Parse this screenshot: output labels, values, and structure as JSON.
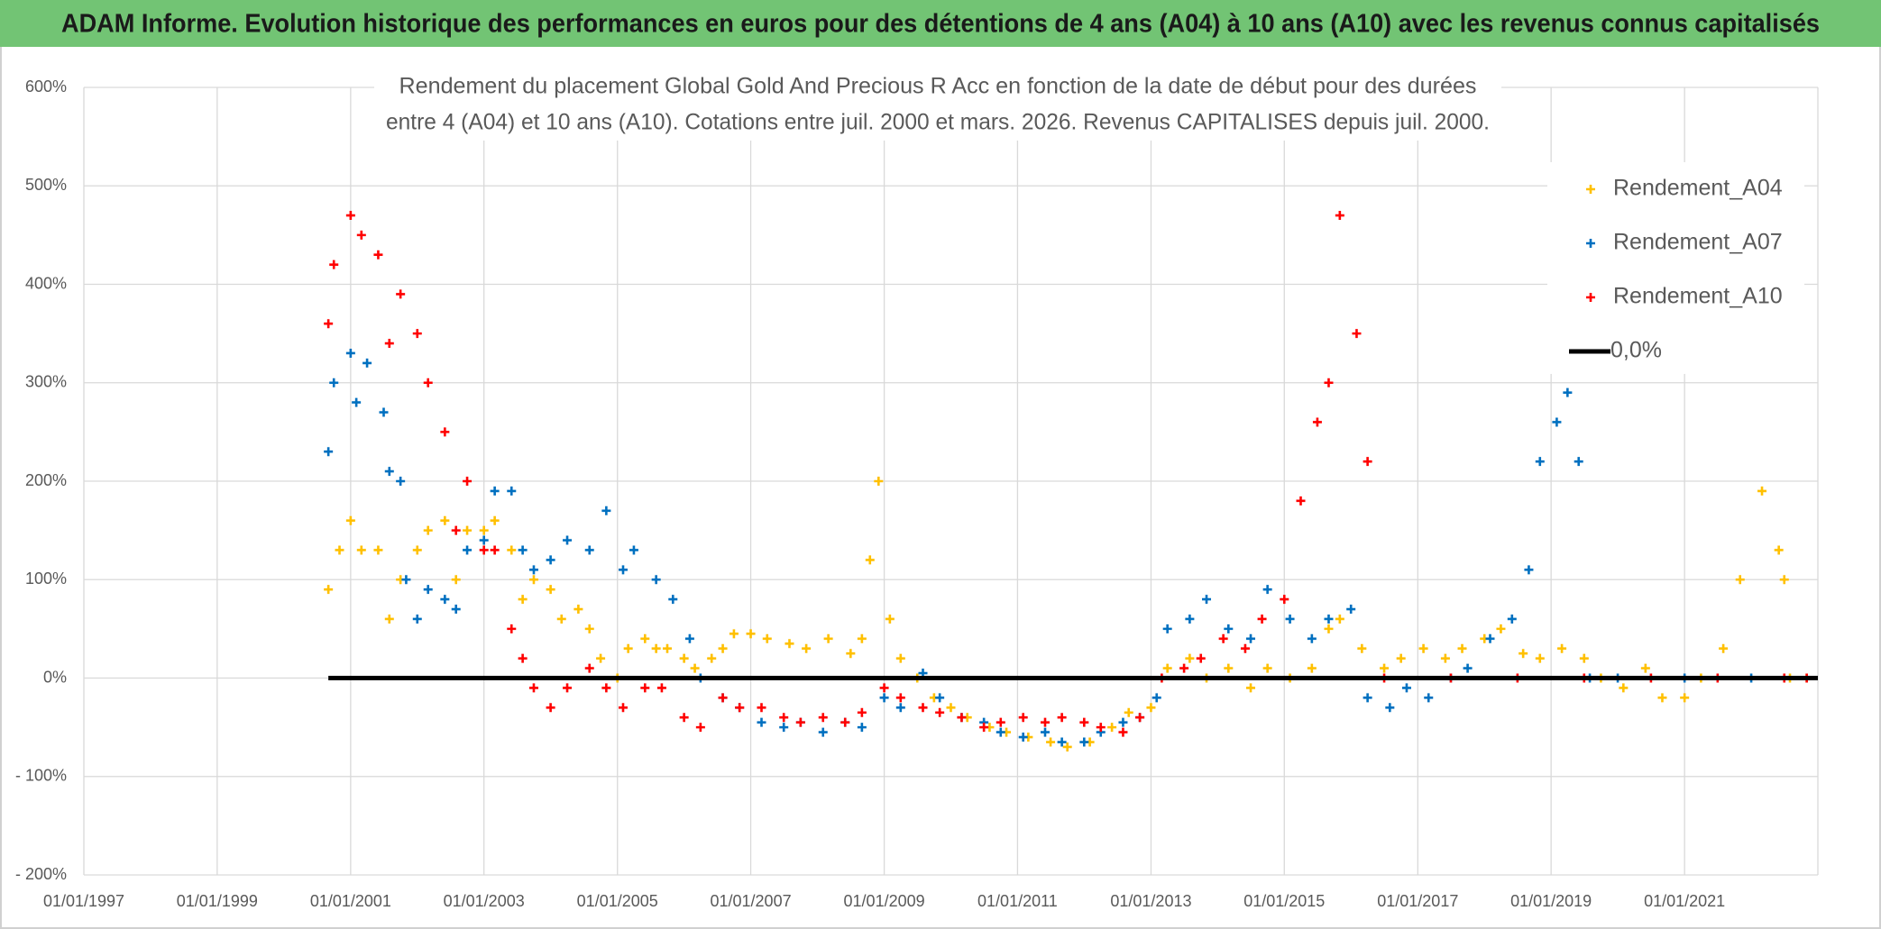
{
  "chart_data": {
    "type": "scatter",
    "banner": "ADAM Informe. Evolution historique des performances en euros pour des détentions de 4 ans (A04) à 10 ans (A10) avec les revenus connus capitalisés",
    "title_lines": [
      "Rendement du placement Global Gold And Precious R Acc en fonction de la date de début pour des durées",
      "entre 4 (A04) et 10 ans (A10). Cotations entre juil. 2000 et mars. 2026. Revenus CAPITALISES depuis juil. 2000."
    ],
    "xlim": [
      "1997-01-01",
      "2023-01-01"
    ],
    "xticks": [
      {
        "value": "1997-01-01",
        "label": "01/01/1997"
      },
      {
        "value": "1999-01-01",
        "label": "01/01/1999"
      },
      {
        "value": "2001-01-01",
        "label": "01/01/2001"
      },
      {
        "value": "2003-01-01",
        "label": "01/01/2003"
      },
      {
        "value": "2005-01-01",
        "label": "01/01/2005"
      },
      {
        "value": "2007-01-01",
        "label": "01/01/2007"
      },
      {
        "value": "2009-01-01",
        "label": "01/01/2009"
      },
      {
        "value": "2011-01-01",
        "label": "01/01/2011"
      },
      {
        "value": "2013-01-01",
        "label": "01/01/2013"
      },
      {
        "value": "2015-01-01",
        "label": "01/01/2015"
      },
      {
        "value": "2017-01-01",
        "label": "01/01/2017"
      },
      {
        "value": "2019-01-01",
        "label": "01/01/2019"
      },
      {
        "value": "2021-01-01",
        "label": "01/01/2021"
      }
    ],
    "ylim": [
      -200,
      600
    ],
    "yticks": [
      {
        "value": 600,
        "label": "600%"
      },
      {
        "value": 500,
        "label": "500%"
      },
      {
        "value": 400,
        "label": "400%"
      },
      {
        "value": 300,
        "label": "300%"
      },
      {
        "value": 200,
        "label": "200%"
      },
      {
        "value": 100,
        "label": "100%"
      },
      {
        "value": 0,
        "label": "0%"
      },
      {
        "value": -100,
        "label": "- 100%"
      },
      {
        "value": -200,
        "label": "- 200%"
      }
    ],
    "grid": true,
    "legend": "upper right",
    "series": [
      {
        "name": "Rendement_A04",
        "color": "#ffc000",
        "style": "marker",
        "x": [
          "2000-09-01",
          "2000-11-01",
          "2001-01-01",
          "2001-03-01",
          "2001-06-01",
          "2001-08-01",
          "2001-10-01",
          "2002-01-01",
          "2002-03-01",
          "2002-06-01",
          "2002-08-01",
          "2002-10-01",
          "2003-01-01",
          "2003-03-01",
          "2003-06-01",
          "2003-08-01",
          "2003-10-01",
          "2004-01-01",
          "2004-03-01",
          "2004-06-01",
          "2004-08-01",
          "2004-10-01",
          "2005-01-01",
          "2005-03-01",
          "2005-06-01",
          "2005-08-01",
          "2005-10-01",
          "2006-01-01",
          "2006-03-01",
          "2006-06-01",
          "2006-08-01",
          "2006-10-01",
          "2007-01-01",
          "2007-04-01",
          "2007-08-01",
          "2007-11-01",
          "2008-03-01",
          "2008-07-01",
          "2008-09-01",
          "2008-10-15",
          "2008-12-01",
          "2009-02-01",
          "2009-04-01",
          "2009-07-01",
          "2009-10-01",
          "2010-01-01",
          "2010-04-01",
          "2010-08-01",
          "2010-11-01",
          "2011-03-01",
          "2011-07-01",
          "2011-10-01",
          "2012-02-01",
          "2012-06-01",
          "2012-09-01",
          "2013-01-01",
          "2013-04-01",
          "2013-08-01",
          "2013-11-01",
          "2014-03-01",
          "2014-07-01",
          "2014-10-01",
          "2015-02-01",
          "2015-06-01",
          "2015-09-01",
          "2015-11-01",
          "2016-03-01",
          "2016-07-01",
          "2016-10-01",
          "2017-02-01",
          "2017-06-01",
          "2017-09-01",
          "2018-01-01",
          "2018-04-01",
          "2018-08-01",
          "2018-11-01",
          "2019-03-01",
          "2019-07-01",
          "2019-10-01",
          "2020-02-01",
          "2020-06-01",
          "2020-09-01",
          "2021-01-01",
          "2021-04-01",
          "2021-08-01",
          "2021-11-01",
          "2022-03-01",
          "2022-06-01",
          "2022-07-01",
          "2022-08-01",
          "2022-11-01"
        ],
        "values": [
          90,
          130,
          160,
          130,
          130,
          60,
          100,
          130,
          150,
          160,
          100,
          150,
          150,
          160,
          130,
          80,
          100,
          90,
          60,
          70,
          50,
          20,
          0,
          30,
          40,
          30,
          30,
          20,
          10,
          20,
          30,
          45,
          45,
          40,
          35,
          30,
          40,
          25,
          40,
          120,
          200,
          60,
          20,
          0,
          -20,
          -30,
          -40,
          -50,
          -55,
          -60,
          -65,
          -70,
          -65,
          -50,
          -35,
          -30,
          10,
          20,
          0,
          10,
          -10,
          10,
          0,
          10,
          50,
          60,
          30,
          10,
          20,
          30,
          20,
          30,
          40,
          50,
          25,
          20,
          30,
          20,
          0,
          -10,
          10,
          -20,
          -20,
          0,
          30,
          100,
          190,
          130,
          100,
          0,
          0
        ]
      },
      {
        "name": "Rendement_A07",
        "color": "#0070c0",
        "style": "marker",
        "x": [
          "2000-09-01",
          "2000-10-01",
          "2001-01-01",
          "2001-02-01",
          "2001-04-01",
          "2001-07-01",
          "2001-08-01",
          "2001-10-01",
          "2001-11-01",
          "2002-01-01",
          "2002-03-01",
          "2002-06-01",
          "2002-08-01",
          "2002-10-01",
          "2003-01-01",
          "2003-03-01",
          "2003-06-01",
          "2003-08-01",
          "2003-10-01",
          "2004-01-01",
          "2004-04-01",
          "2004-08-01",
          "2004-11-01",
          "2005-02-01",
          "2005-04-01",
          "2005-08-01",
          "2005-11-01",
          "2006-02-01",
          "2006-04-01",
          "2006-08-01",
          "2006-11-01",
          "2007-03-01",
          "2007-07-01",
          "2007-10-01",
          "2008-02-01",
          "2008-06-01",
          "2008-09-01",
          "2009-01-01",
          "2009-04-01",
          "2009-08-01",
          "2009-11-01",
          "2010-03-01",
          "2010-07-01",
          "2010-10-01",
          "2011-02-01",
          "2011-06-01",
          "2011-09-01",
          "2012-01-01",
          "2012-04-01",
          "2012-08-01",
          "2012-11-01",
          "2013-02-01",
          "2013-04-01",
          "2013-08-01",
          "2013-11-01",
          "2014-03-01",
          "2014-07-01",
          "2014-10-01",
          "2015-02-01",
          "2015-06-01",
          "2015-09-01",
          "2016-01-01",
          "2016-04-01",
          "2016-08-01",
          "2016-11-01",
          "2017-03-01",
          "2017-07-01",
          "2017-10-01",
          "2018-02-01",
          "2018-06-01",
          "2018-09-01",
          "2018-11-01",
          "2019-02-01",
          "2019-04-01",
          "2019-06-01",
          "2019-08-01",
          "2020-01-01",
          "2021-01-01",
          "2022-01-01"
        ],
        "values": [
          230,
          300,
          330,
          280,
          320,
          270,
          210,
          200,
          100,
          60,
          90,
          80,
          70,
          130,
          140,
          190,
          190,
          130,
          110,
          120,
          140,
          130,
          170,
          110,
          130,
          100,
          80,
          40,
          0,
          -20,
          -30,
          -45,
          -50,
          -45,
          -55,
          -45,
          -50,
          -20,
          -30,
          5,
          -20,
          -40,
          -45,
          -55,
          -60,
          -55,
          -65,
          -65,
          -55,
          -45,
          -40,
          -20,
          50,
          60,
          80,
          50,
          40,
          90,
          60,
          40,
          60,
          70,
          -20,
          -30,
          -10,
          -20,
          0,
          10,
          40,
          60,
          110,
          220,
          260,
          290,
          220,
          0,
          0,
          0,
          0
        ]
      },
      {
        "name": "Rendement_A10",
        "color": "#ff0000",
        "style": "marker",
        "x": [
          "2000-09-01",
          "2000-10-01",
          "2001-01-01",
          "2001-03-01",
          "2001-06-01",
          "2001-08-01",
          "2001-10-01",
          "2002-01-01",
          "2002-03-01",
          "2002-06-01",
          "2002-08-01",
          "2002-10-01",
          "2003-01-01",
          "2003-03-01",
          "2003-06-01",
          "2003-08-01",
          "2003-10-01",
          "2004-01-01",
          "2004-04-01",
          "2004-08-01",
          "2004-11-01",
          "2005-02-01",
          "2005-06-01",
          "2005-09-01",
          "2006-01-01",
          "2006-04-01",
          "2006-08-01",
          "2006-11-01",
          "2007-03-01",
          "2007-07-01",
          "2007-10-01",
          "2008-02-01",
          "2008-06-01",
          "2008-09-01",
          "2009-01-01",
          "2009-04-01",
          "2009-08-01",
          "2009-11-01",
          "2010-03-01",
          "2010-07-01",
          "2010-10-01",
          "2011-02-01",
          "2011-06-01",
          "2011-09-01",
          "2012-01-01",
          "2012-04-01",
          "2012-08-01",
          "2012-11-01",
          "2013-03-01",
          "2013-07-01",
          "2013-10-01",
          "2014-02-01",
          "2014-06-01",
          "2014-09-01",
          "2015-01-01",
          "2015-04-01",
          "2015-07-01",
          "2015-09-01",
          "2015-11-01",
          "2016-02-01",
          "2016-04-01",
          "2016-07-01",
          "2017-07-01",
          "2018-07-01",
          "2019-07-01",
          "2020-07-01",
          "2021-07-01",
          "2022-07-01",
          "2022-11-01"
        ],
        "values": [
          360,
          420,
          470,
          450,
          430,
          340,
          390,
          350,
          300,
          250,
          150,
          200,
          130,
          130,
          50,
          20,
          -10,
          -30,
          -10,
          10,
          -10,
          -30,
          -10,
          -10,
          -40,
          -50,
          -20,
          -30,
          -30,
          -40,
          -45,
          -40,
          -45,
          -35,
          -10,
          -20,
          -30,
          -35,
          -40,
          -50,
          -45,
          -40,
          -45,
          -40,
          -45,
          -50,
          -55,
          -40,
          0,
          10,
          20,
          40,
          30,
          60,
          80,
          180,
          260,
          300,
          470,
          350,
          220,
          0,
          0,
          0,
          0,
          0,
          0,
          0,
          0
        ]
      },
      {
        "name": "0,0%",
        "color": "#000000",
        "style": "line",
        "x": [
          "2000-09-01",
          "2023-01-01"
        ],
        "values": [
          0,
          0
        ]
      }
    ]
  }
}
